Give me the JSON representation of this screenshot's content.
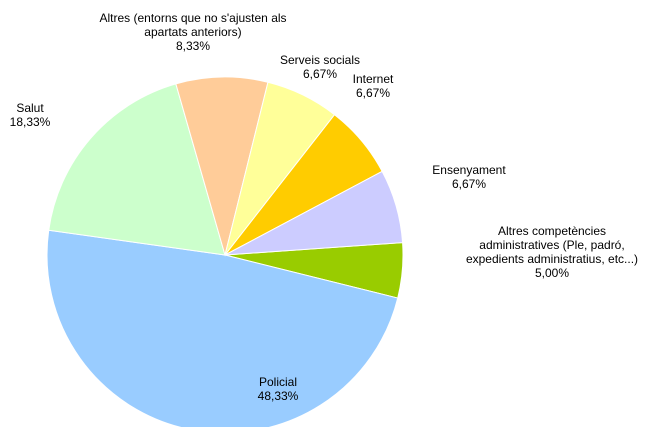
{
  "chart_data": {
    "type": "pie",
    "title": "",
    "slices": [
      {
        "label_lines": [
          "Altres competències",
          "administratives (Ple, padró,",
          "expedients administratius, etc...)"
        ],
        "pct_text": "5,00%",
        "value": 5.0,
        "color": "#99cc00"
      },
      {
        "label_lines": [
          "Policial"
        ],
        "pct_text": "48,33%",
        "value": 48.33,
        "color": "#99ccff"
      },
      {
        "label_lines": [
          "Salut"
        ],
        "pct_text": "18,33%",
        "value": 18.33,
        "color": "#ccffcc"
      },
      {
        "label_lines": [
          "Altres (entorns que no s'ajusten als",
          "apartats anteriors)"
        ],
        "pct_text": "8,33%",
        "value": 8.33,
        "color": "#ffcc99"
      },
      {
        "label_lines": [
          "Serveis socials"
        ],
        "pct_text": "6,67%",
        "value": 6.67,
        "color": "#ffff99"
      },
      {
        "label_lines": [
          "Internet"
        ],
        "pct_text": "6,67%",
        "value": 6.67,
        "color": "#ffcc00"
      },
      {
        "label_lines": [
          "Ensenyament"
        ],
        "pct_text": "6,67%",
        "value": 6.67,
        "color": "#ccccff"
      }
    ]
  }
}
